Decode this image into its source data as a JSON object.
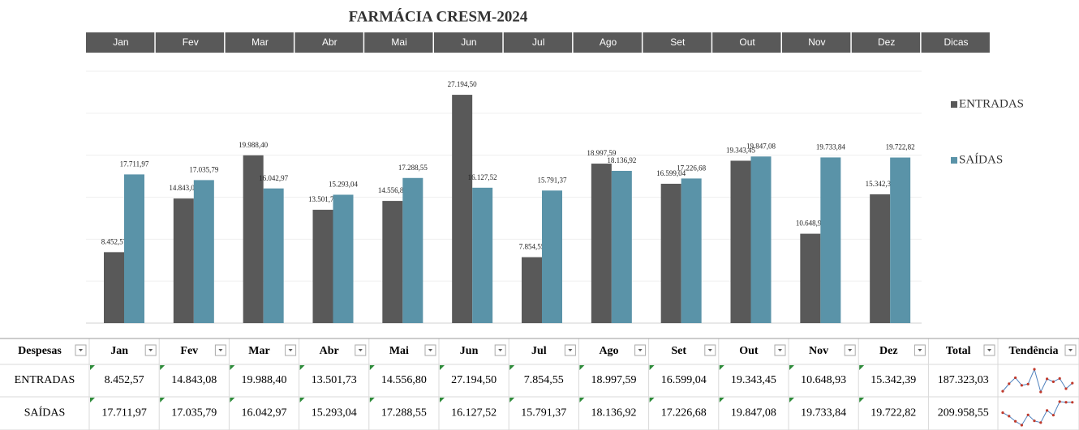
{
  "chart_data": {
    "type": "bar",
    "title": "FARMÁCIA CRESM-2024",
    "categories": [
      "Jan",
      "Fev",
      "Mar",
      "Abr",
      "Mai",
      "Jun",
      "Jul",
      "Ago",
      "Set",
      "Out",
      "Nov",
      "Dez"
    ],
    "series": [
      {
        "name": "ENTRADAS",
        "color": "#595959",
        "values": [
          8452.57,
          14843.08,
          19988.4,
          13501.73,
          14556.8,
          27194.5,
          7854.55,
          18997.59,
          16599.04,
          19343.45,
          10648.93,
          15342.39
        ],
        "value_labels": [
          "8.452,57",
          "14.843,08",
          "19.988,40",
          "13.501,73",
          "14.556,80",
          "27.194,50",
          "7.854,55",
          "18.997,59",
          "16.599,04",
          "19.343,45",
          "10.648,93",
          "15.342,39"
        ]
      },
      {
        "name": "SAÍDAS",
        "color": "#5a93a8",
        "values": [
          17711.97,
          17035.79,
          16042.97,
          15293.04,
          17288.55,
          16127.52,
          15791.37,
          18136.92,
          17226.68,
          19847.08,
          19733.84,
          19722.82
        ],
        "value_labels": [
          "17.711,97",
          "17.035,79",
          "16.042,97",
          "15.293,04",
          "17.288,55",
          "16.127,52",
          "15.791,37",
          "18.136,92",
          "17.226,68",
          "19.847,08",
          "19.733,84",
          "19.722,82"
        ]
      }
    ],
    "ylim": [
      0,
      30000
    ],
    "yticks": [
      0,
      5000,
      10000,
      15000,
      20000,
      25000,
      30000
    ],
    "grid": true,
    "legend": "right"
  },
  "tabs": [
    "Jan",
    "Fev",
    "Mar",
    "Abr",
    "Mai",
    "Jun",
    "Jul",
    "Ago",
    "Set",
    "Out",
    "Nov",
    "Dez",
    "Dicas"
  ],
  "table": {
    "header": [
      "Despesas",
      "Jan",
      "Fev",
      "Mar",
      "Abr",
      "Mai",
      "Jun",
      "Jul",
      "Ago",
      "Set",
      "Out",
      "Nov",
      "Dez",
      "Total",
      "Tendência"
    ],
    "rows": [
      [
        "ENTRADAS",
        "8.452,57",
        "14.843,08",
        "19.988,40",
        "13.501,73",
        "14.556,80",
        "27.194,50",
        "7.854,55",
        "18.997,59",
        "16.599,04",
        "19.343,45",
        "10.648,93",
        "15.342,39",
        "187.323,03"
      ],
      [
        "SAÍDAS",
        "17.711,97",
        "17.035,79",
        "16.042,97",
        "15.293,04",
        "17.288,55",
        "16.127,52",
        "15.791,37",
        "18.136,92",
        "17.226,68",
        "19.847,08",
        "19.733,84",
        "19.722,82",
        "209.958,55"
      ]
    ]
  }
}
